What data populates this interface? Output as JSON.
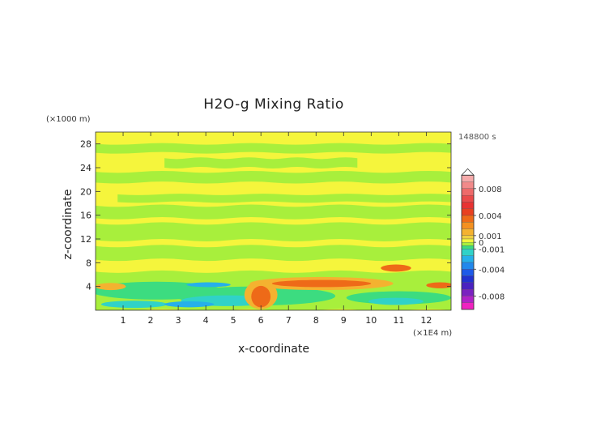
{
  "chart_data": {
    "type": "heatmap",
    "title": "H2O-g Mixing Ratio",
    "xlabel": "x-coordinate",
    "ylabel": "z-coordinate",
    "x_unit": "(×1E4 m)",
    "y_unit": "(×1000 m)",
    "time_label": "148800 s",
    "xlim": [
      0,
      12.9
    ],
    "ylim": [
      0,
      30
    ],
    "x_ticks": [
      {
        "v": 1,
        "label": "1"
      },
      {
        "v": 2,
        "label": "2"
      },
      {
        "v": 3,
        "label": "3"
      },
      {
        "v": 4,
        "label": "4"
      },
      {
        "v": 5,
        "label": "5"
      },
      {
        "v": 6,
        "label": "6"
      },
      {
        "v": 7,
        "label": "7"
      },
      {
        "v": 8,
        "label": "8"
      },
      {
        "v": 9,
        "label": "9"
      },
      {
        "v": 10,
        "label": "10"
      },
      {
        "v": 11,
        "label": "11"
      },
      {
        "v": 12,
        "label": "12"
      }
    ],
    "y_ticks": [
      {
        "v": 4,
        "label": "4"
      },
      {
        "v": 8,
        "label": "8"
      },
      {
        "v": 12,
        "label": "12"
      },
      {
        "v": 16,
        "label": "16"
      },
      {
        "v": 20,
        "label": "20"
      },
      {
        "v": 24,
        "label": "24"
      },
      {
        "v": 28,
        "label": "28"
      }
    ],
    "colorbar": {
      "range": [
        -0.01,
        0.011
      ],
      "labels": [
        {
          "v": 0.008,
          "label": "0.008"
        },
        {
          "v": 0.004,
          "label": "0.004"
        },
        {
          "v": 0.001,
          "label": "0.001"
        },
        {
          "v": 0.0,
          "label": "0"
        },
        {
          "v": -0.001,
          "label": "-0.001"
        },
        {
          "v": -0.004,
          "label": "-0.004"
        },
        {
          "v": -0.008,
          "label": "-0.008"
        }
      ],
      "levels": [
        {
          "from": 0.009,
          "to": 0.01,
          "color": "#f6aaaa"
        },
        {
          "from": 0.008,
          "to": 0.009,
          "color": "#f28a8a"
        },
        {
          "from": 0.007,
          "to": 0.008,
          "color": "#ee6a6a"
        },
        {
          "from": 0.006,
          "to": 0.007,
          "color": "#ea4a4a"
        },
        {
          "from": 0.005,
          "to": 0.006,
          "color": "#e83232"
        },
        {
          "from": 0.004,
          "to": 0.005,
          "color": "#e84020"
        },
        {
          "from": 0.003,
          "to": 0.004,
          "color": "#ee6a18"
        },
        {
          "from": 0.002,
          "to": 0.003,
          "color": "#f49020"
        },
        {
          "from": 0.001,
          "to": 0.002,
          "color": "#f4b230"
        },
        {
          "from": 0.0005,
          "to": 0.001,
          "color": "#f0d040"
        },
        {
          "from": 0.0,
          "to": 0.0005,
          "color": "#f5f53c"
        },
        {
          "from": -0.0005,
          "to": 0.0,
          "color": "#a8ef3c"
        },
        {
          "from": -0.001,
          "to": -0.0005,
          "color": "#3cdc80"
        },
        {
          "from": -0.002,
          "to": -0.001,
          "color": "#30d2c8"
        },
        {
          "from": -0.003,
          "to": -0.002,
          "color": "#26b0ea"
        },
        {
          "from": -0.004,
          "to": -0.003,
          "color": "#2288ec"
        },
        {
          "from": -0.005,
          "to": -0.004,
          "color": "#1e5ae8"
        },
        {
          "from": -0.006,
          "to": -0.005,
          "color": "#2232d0"
        },
        {
          "from": -0.007,
          "to": -0.006,
          "color": "#4a22c0"
        },
        {
          "from": -0.008,
          "to": -0.007,
          "color": "#7a22c0"
        },
        {
          "from": -0.009,
          "to": -0.008,
          "color": "#b022c8"
        },
        {
          "from": -0.01,
          "to": -0.009,
          "color": "#f022c0"
        }
      ]
    },
    "background_color": "#f5f53c",
    "regions": [
      {
        "type": "band",
        "x0": 0,
        "x1": 12.9,
        "y0": 26.5,
        "y1": 28.0,
        "color": "#a8ef3c"
      },
      {
        "type": "band",
        "x0": 2.5,
        "x1": 9.5,
        "y0": 24.0,
        "y1": 25.6,
        "color": "#a8ef3c"
      },
      {
        "type": "band",
        "x0": 0,
        "x1": 12.9,
        "y0": 21.5,
        "y1": 23.3,
        "color": "#a8ef3c"
      },
      {
        "type": "band",
        "x0": 0.8,
        "x1": 12.9,
        "y0": 18.2,
        "y1": 19.5,
        "color": "#a8ef3c"
      },
      {
        "type": "band",
        "x0": 0,
        "x1": 12.9,
        "y0": 15.5,
        "y1": 17.6,
        "color": "#a8ef3c"
      },
      {
        "type": "band",
        "x0": 0,
        "x1": 12.9,
        "y0": 11.8,
        "y1": 14.6,
        "color": "#a8ef3c"
      },
      {
        "type": "band",
        "x0": 0,
        "x1": 12.9,
        "y0": 8.5,
        "y1": 10.8,
        "color": "#a8ef3c"
      },
      {
        "type": "band",
        "x0": 0,
        "x1": 12.9,
        "y0": 0,
        "y1": 6.5,
        "color": "#a8ef3c"
      },
      {
        "type": "blob",
        "cx": 2.2,
        "cy": 3.3,
        "rx": 2.4,
        "ry": 1.5,
        "color": "#3cdc80"
      },
      {
        "type": "blob",
        "cx": 5.8,
        "cy": 2.4,
        "rx": 2.9,
        "ry": 1.6,
        "color": "#3cdc80"
      },
      {
        "type": "blob",
        "cx": 11.0,
        "cy": 2.1,
        "rx": 1.9,
        "ry": 1.1,
        "color": "#3cdc80"
      },
      {
        "type": "blob",
        "cx": 4.8,
        "cy": 1.6,
        "rx": 1.7,
        "ry": 0.9,
        "color": "#30d2c8"
      },
      {
        "type": "blob",
        "cx": 1.4,
        "cy": 1.0,
        "rx": 1.2,
        "ry": 0.6,
        "color": "#30d2c8"
      },
      {
        "type": "blob",
        "cx": 10.9,
        "cy": 1.5,
        "rx": 1.0,
        "ry": 0.6,
        "color": "#30d2c8"
      },
      {
        "type": "blob",
        "cx": 3.4,
        "cy": 1.0,
        "rx": 0.9,
        "ry": 0.5,
        "color": "#26b0ea"
      },
      {
        "type": "blob",
        "cx": 4.1,
        "cy": 4.3,
        "rx": 0.8,
        "ry": 0.4,
        "color": "#26b0ea"
      },
      {
        "type": "blob",
        "cx": 0.55,
        "cy": 4.0,
        "rx": 0.55,
        "ry": 0.6,
        "color": "#f4b230"
      },
      {
        "type": "blob",
        "cx": 8.2,
        "cy": 4.5,
        "rx": 2.6,
        "ry": 1.1,
        "color": "#f4b230"
      },
      {
        "type": "blob",
        "cx": 8.2,
        "cy": 4.5,
        "rx": 1.8,
        "ry": 0.6,
        "color": "#ee6a18"
      },
      {
        "type": "blob",
        "cx": 6.0,
        "cy": 2.6,
        "rx": 0.6,
        "ry": 2.4,
        "color": "#f4b230"
      },
      {
        "type": "blob",
        "cx": 6.0,
        "cy": 2.3,
        "rx": 0.35,
        "ry": 1.8,
        "color": "#ee6a18"
      },
      {
        "type": "blob",
        "cx": 10.9,
        "cy": 7.1,
        "rx": 0.55,
        "ry": 0.6,
        "color": "#ee6a18"
      },
      {
        "type": "blob",
        "cx": 12.5,
        "cy": 4.2,
        "rx": 0.5,
        "ry": 0.5,
        "color": "#ee6a18"
      }
    ]
  }
}
